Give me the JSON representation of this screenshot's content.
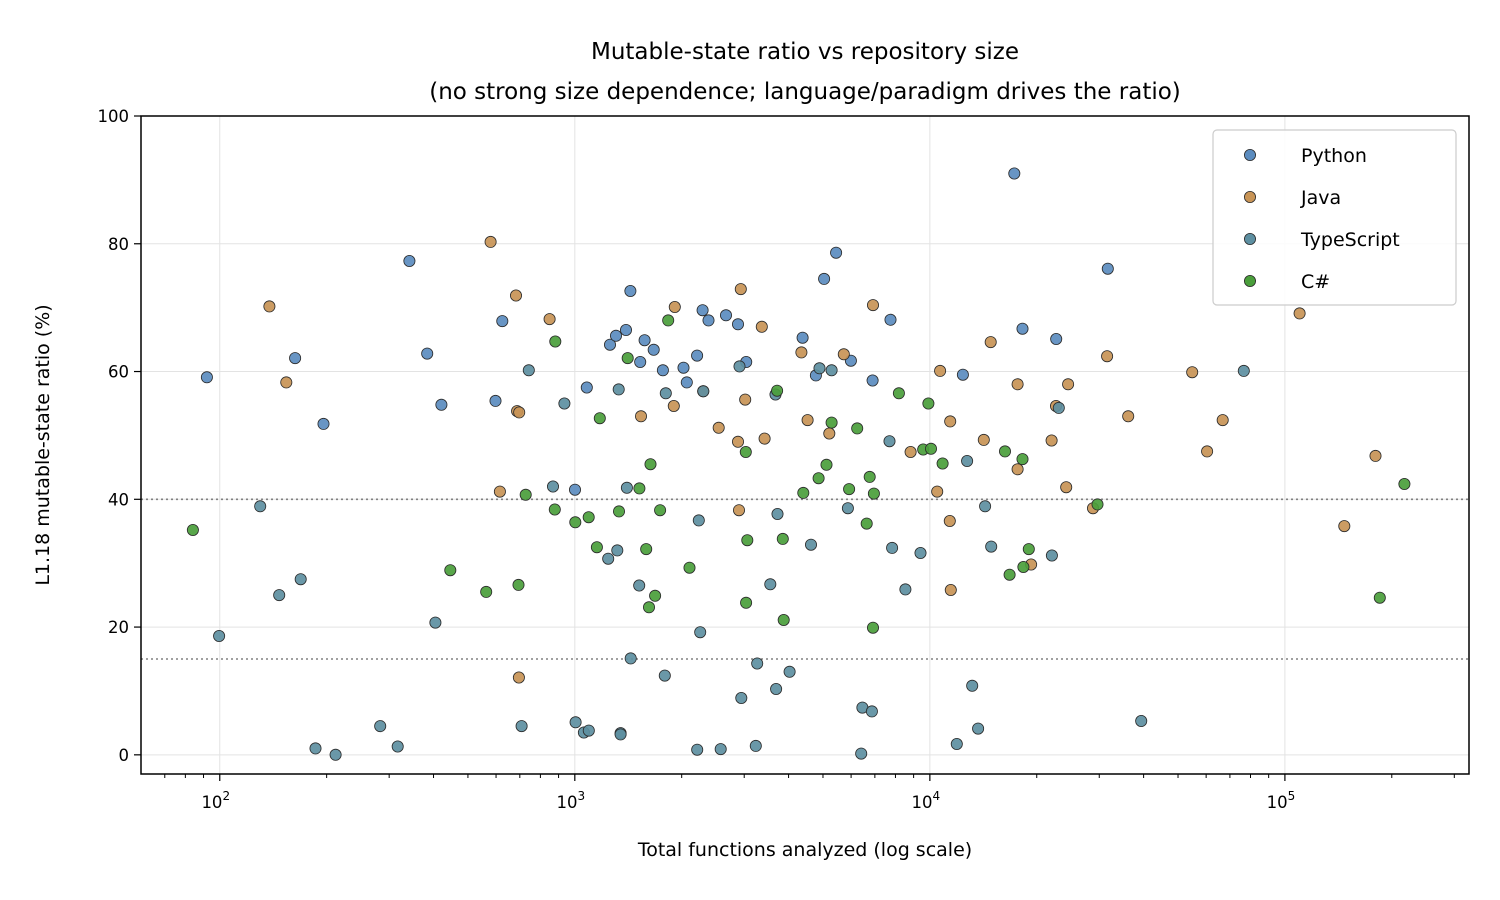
{
  "chart_data": {
    "type": "scatter",
    "title": "Mutable-state ratio vs repository size",
    "subtitle": "(no strong size dependence; language/paradigm drives the ratio)",
    "xlabel": "Total functions analyzed (log scale)",
    "ylabel": "L1.18 mutable-state ratio (%)",
    "xscale": "log",
    "xlim": [
      60,
      330000
    ],
    "ylim": [
      -3,
      100
    ],
    "x_ticks": [
      100,
      1000,
      10000,
      100000
    ],
    "x_tick_labels": [
      {
        "base": "10",
        "exp": "2"
      },
      {
        "base": "10",
        "exp": "3"
      },
      {
        "base": "10",
        "exp": "4"
      },
      {
        "base": "10",
        "exp": "5"
      }
    ],
    "y_ticks": [
      0,
      20,
      40,
      60,
      80,
      100
    ],
    "y_tick_labels": [
      "0",
      "20",
      "40",
      "60",
      "80",
      "100"
    ],
    "reference_lines": [
      40,
      15
    ],
    "grid": true,
    "legend_position": "top-right",
    "series": [
      {
        "name": "Python",
        "color": "#5b8cbf",
        "points": [
          [
            92,
            59.1
          ],
          [
            163,
            62.1
          ],
          [
            196,
            51.8
          ],
          [
            342,
            77.3
          ],
          [
            384,
            62.8
          ],
          [
            421,
            54.8
          ],
          [
            598,
            55.4
          ],
          [
            625,
            67.9
          ],
          [
            1001,
            41.5
          ],
          [
            1081,
            57.5
          ],
          [
            1256,
            64.2
          ],
          [
            1306,
            65.6
          ],
          [
            1394,
            66.5
          ],
          [
            1434,
            72.6
          ],
          [
            1528,
            61.5
          ],
          [
            1572,
            64.9
          ],
          [
            1668,
            63.4
          ],
          [
            1770,
            60.2
          ],
          [
            2023,
            60.6
          ],
          [
            2068,
            58.3
          ],
          [
            2210,
            62.5
          ],
          [
            2290,
            69.6
          ],
          [
            2380,
            68.0
          ],
          [
            2665,
            68.8
          ],
          [
            2882,
            67.4
          ],
          [
            3039,
            61.5
          ],
          [
            4381,
            65.3
          ],
          [
            4776,
            59.4
          ],
          [
            5037,
            74.5
          ],
          [
            5444,
            78.6
          ],
          [
            5992,
            61.7
          ],
          [
            6899,
            58.6
          ],
          [
            7747,
            68.1
          ],
          [
            12389,
            59.5
          ],
          [
            17290,
            91.0
          ],
          [
            18241,
            66.7
          ],
          [
            22687,
            65.1
          ],
          [
            31705,
            76.1
          ]
        ]
      },
      {
        "name": "Java",
        "color": "#c89456",
        "points": [
          [
            138,
            70.2
          ],
          [
            154,
            58.3
          ],
          [
            579,
            80.3
          ],
          [
            615,
            41.2
          ],
          [
            683,
            71.9
          ],
          [
            688,
            53.8
          ],
          [
            697,
            53.6
          ],
          [
            696,
            12.1
          ],
          [
            849,
            68.2
          ],
          [
            1536,
            53.0
          ],
          [
            1913,
            70.1
          ],
          [
            1900,
            54.6
          ],
          [
            2300,
            56.9
          ],
          [
            2543,
            51.2
          ],
          [
            2934,
            72.9
          ],
          [
            2881,
            49.0
          ],
          [
            2901,
            38.3
          ],
          [
            3020,
            55.6
          ],
          [
            3363,
            67.0
          ],
          [
            3423,
            49.5
          ],
          [
            4347,
            63.0
          ],
          [
            4526,
            52.4
          ],
          [
            5210,
            50.3
          ],
          [
            5723,
            62.7
          ],
          [
            6917,
            70.4
          ],
          [
            8826,
            47.4
          ],
          [
            10491,
            41.2
          ],
          [
            10686,
            60.1
          ],
          [
            11409,
            52.2
          ],
          [
            11379,
            36.6
          ],
          [
            11453,
            25.8
          ],
          [
            14191,
            49.3
          ],
          [
            14833,
            64.6
          ],
          [
            17666,
            58.0
          ],
          [
            17665,
            44.7
          ],
          [
            19285,
            29.8
          ],
          [
            22021,
            49.2
          ],
          [
            22658,
            54.6
          ],
          [
            24204,
            41.9
          ],
          [
            24518,
            58.0
          ],
          [
            28800,
            38.6
          ],
          [
            31558,
            62.4
          ],
          [
            36197,
            53.0
          ],
          [
            54807,
            59.9
          ],
          [
            60370,
            47.5
          ],
          [
            66804,
            52.4
          ],
          [
            110000,
            69.1
          ],
          [
            147000,
            35.8
          ],
          [
            180000,
            46.8
          ]
        ]
      },
      {
        "name": "TypeScript",
        "color": "#5d8fa1",
        "points": [
          [
            99.6,
            18.6
          ],
          [
            130,
            38.9
          ],
          [
            147,
            25.0
          ],
          [
            169,
            27.5
          ],
          [
            186,
            1.0
          ],
          [
            212,
            0.0
          ],
          [
            283,
            4.5
          ],
          [
            317,
            1.3
          ],
          [
            405,
            20.7
          ],
          [
            708,
            4.5
          ],
          [
            742,
            60.2
          ],
          [
            868,
            42.0
          ],
          [
            935,
            55.0
          ],
          [
            1005,
            5.1
          ],
          [
            1061,
            3.5
          ],
          [
            1095,
            3.8
          ],
          [
            1242,
            30.7
          ],
          [
            1317,
            32.0
          ],
          [
            1329,
            57.2
          ],
          [
            1346,
            3.4
          ],
          [
            1346,
            3.2
          ],
          [
            1402,
            41.8
          ],
          [
            1437,
            15.1
          ],
          [
            1518,
            26.5
          ],
          [
            1793,
            12.4
          ],
          [
            1804,
            56.6
          ],
          [
            2212,
            0.8
          ],
          [
            2235,
            36.7
          ],
          [
            2255,
            19.2
          ],
          [
            2301,
            56.9
          ],
          [
            2575,
            0.9
          ],
          [
            2910,
            60.8
          ],
          [
            2944,
            8.9
          ],
          [
            3234,
            1.4
          ],
          [
            3264,
            14.3
          ],
          [
            3554,
            26.7
          ],
          [
            3676,
            56.4
          ],
          [
            3690,
            10.3
          ],
          [
            3723,
            37.7
          ],
          [
            4028,
            13.0
          ],
          [
            4625,
            32.9
          ],
          [
            4889,
            60.5
          ],
          [
            5287,
            60.2
          ],
          [
            5877,
            38.6
          ],
          [
            6406,
            0.2
          ],
          [
            6456,
            7.4
          ],
          [
            6865,
            6.8
          ],
          [
            7698,
            49.1
          ],
          [
            7829,
            32.4
          ],
          [
            8533,
            25.9
          ],
          [
            9411,
            31.6
          ],
          [
            12736,
            46.0
          ],
          [
            13163,
            10.8
          ],
          [
            13671,
            4.1
          ],
          [
            11908,
            1.7
          ],
          [
            14308,
            38.9
          ],
          [
            14884,
            32.6
          ],
          [
            22063,
            31.2
          ],
          [
            23070,
            54.3
          ],
          [
            39366,
            5.3
          ],
          [
            76613,
            60.1
          ]
        ]
      },
      {
        "name": "C#",
        "color": "#4a9e3b",
        "points": [
          [
            84,
            35.2
          ],
          [
            446,
            28.9
          ],
          [
            563,
            25.5
          ],
          [
            694,
            26.6
          ],
          [
            727,
            40.7
          ],
          [
            881,
            64.7
          ],
          [
            878,
            38.4
          ],
          [
            1003,
            36.4
          ],
          [
            1094,
            37.2
          ],
          [
            1154,
            32.5
          ],
          [
            1176,
            52.7
          ],
          [
            1332,
            38.1
          ],
          [
            1409,
            62.1
          ],
          [
            1520,
            41.7
          ],
          [
            1589,
            32.2
          ],
          [
            1618,
            23.1
          ],
          [
            1634,
            45.5
          ],
          [
            1683,
            24.9
          ],
          [
            1739,
            38.3
          ],
          [
            1833,
            68.0
          ],
          [
            2104,
            29.3
          ],
          [
            3031,
            47.4
          ],
          [
            3037,
            23.8
          ],
          [
            3060,
            33.6
          ],
          [
            3713,
            57.0
          ],
          [
            3853,
            33.8
          ],
          [
            3876,
            21.1
          ],
          [
            4401,
            41.0
          ],
          [
            4859,
            43.3
          ],
          [
            5116,
            45.4
          ],
          [
            5289,
            52.0
          ],
          [
            5924,
            41.6
          ],
          [
            6241,
            51.1
          ],
          [
            6640,
            36.2
          ],
          [
            6769,
            43.5
          ],
          [
            6957,
            40.9
          ],
          [
            6917,
            19.9
          ],
          [
            8183,
            56.6
          ],
          [
            9580,
            47.8
          ],
          [
            9908,
            55.0
          ],
          [
            10076,
            47.9
          ],
          [
            10864,
            45.6
          ],
          [
            16278,
            47.5
          ],
          [
            16771,
            28.2
          ],
          [
            18234,
            46.3
          ],
          [
            18343,
            29.4
          ],
          [
            18999,
            32.2
          ],
          [
            29660,
            39.2
          ],
          [
            185000,
            24.6
          ],
          [
            217000,
            42.4
          ]
        ]
      }
    ]
  }
}
